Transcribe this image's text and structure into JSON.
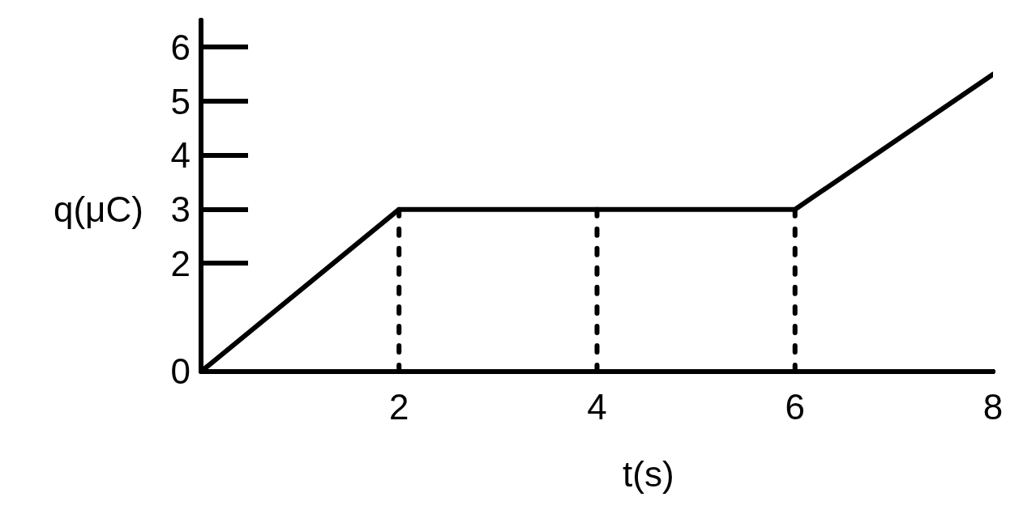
{
  "chart_data": {
    "type": "line",
    "xlabel": "t(s)",
    "ylabel": "q(μC)",
    "series": [
      {
        "color": "#000000",
        "x": [
          0,
          2,
          6,
          8
        ],
        "values": [
          0,
          3,
          3,
          5.5
        ],
        "line_style": "solid"
      },
      {
        "color": "#000000",
        "x": [
          2,
          2
        ],
        "values": [
          0,
          3
        ],
        "line_style": "dashed"
      },
      {
        "color": "#000000",
        "x": [
          4,
          4
        ],
        "values": [
          0,
          3
        ],
        "line_style": "dashed"
      },
      {
        "color": "#000000",
        "x": [
          6,
          6
        ],
        "values": [
          0,
          3
        ],
        "line_style": "dashed"
      }
    ],
    "xlim": [
      0,
      8
    ],
    "xticks": [
      2,
      4,
      6,
      8
    ],
    "ylim": [
      0,
      6.5
    ],
    "yticks": [
      0,
      2,
      3,
      4,
      5,
      6
    ]
  }
}
